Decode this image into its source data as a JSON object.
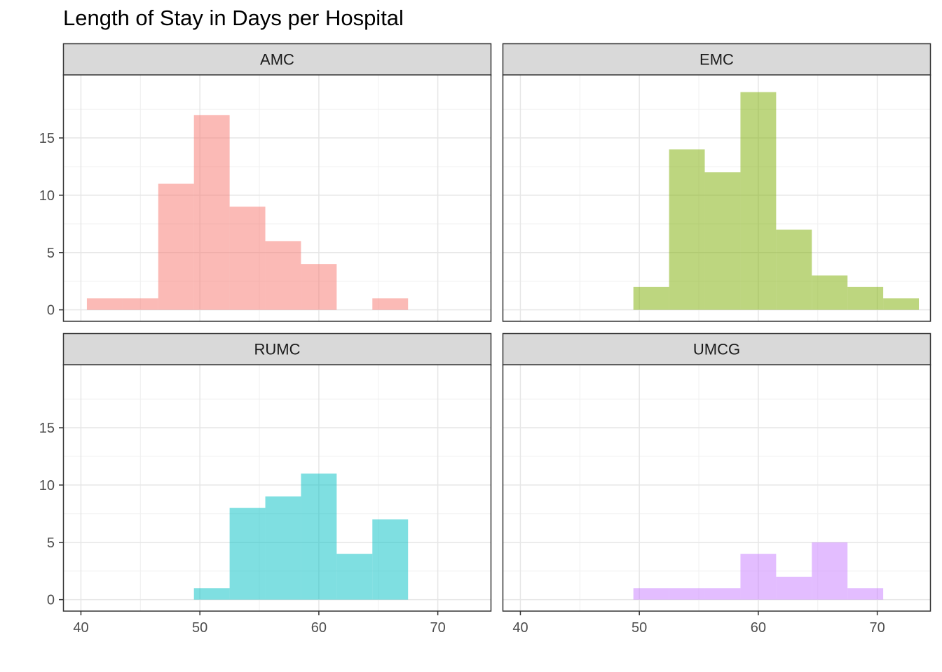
{
  "chart_data": {
    "type": "bar",
    "title": "Length of Stay in Days per Hospital",
    "xlabel": "",
    "ylabel": "",
    "xlim": [
      38.5,
      74.5
    ],
    "ylim": [
      -1,
      20.5
    ],
    "x_ticks": [
      40,
      50,
      60,
      70
    ],
    "y_ticks": [
      0,
      5,
      10,
      15
    ],
    "x_tick_labels": [
      "40",
      "50",
      "60",
      "70"
    ],
    "y_tick_labels": [
      "0",
      "5",
      "10",
      "15"
    ],
    "bin_width": 3,
    "bin_centers": [
      42,
      45,
      48,
      51,
      54,
      57,
      60,
      63,
      66,
      69,
      72
    ],
    "grid": true,
    "legend": "none",
    "panels": [
      {
        "name": "AMC",
        "color": "#F8766D",
        "values": [
          1,
          1,
          11,
          17,
          9,
          6,
          4,
          0,
          1,
          0,
          0
        ]
      },
      {
        "name": "EMC",
        "color": "#7CAE00",
        "values": [
          0,
          0,
          0,
          2,
          14,
          12,
          19,
          7,
          3,
          2,
          1
        ]
      },
      {
        "name": "RUMC",
        "color": "#00BFC4",
        "values": [
          0,
          0,
          0,
          1,
          8,
          9,
          11,
          4,
          7,
          0,
          0
        ]
      },
      {
        "name": "UMCG",
        "color": "#C77CFF",
        "values": [
          0,
          0,
          0,
          1,
          1,
          1,
          4,
          2,
          5,
          1,
          0
        ]
      }
    ]
  }
}
